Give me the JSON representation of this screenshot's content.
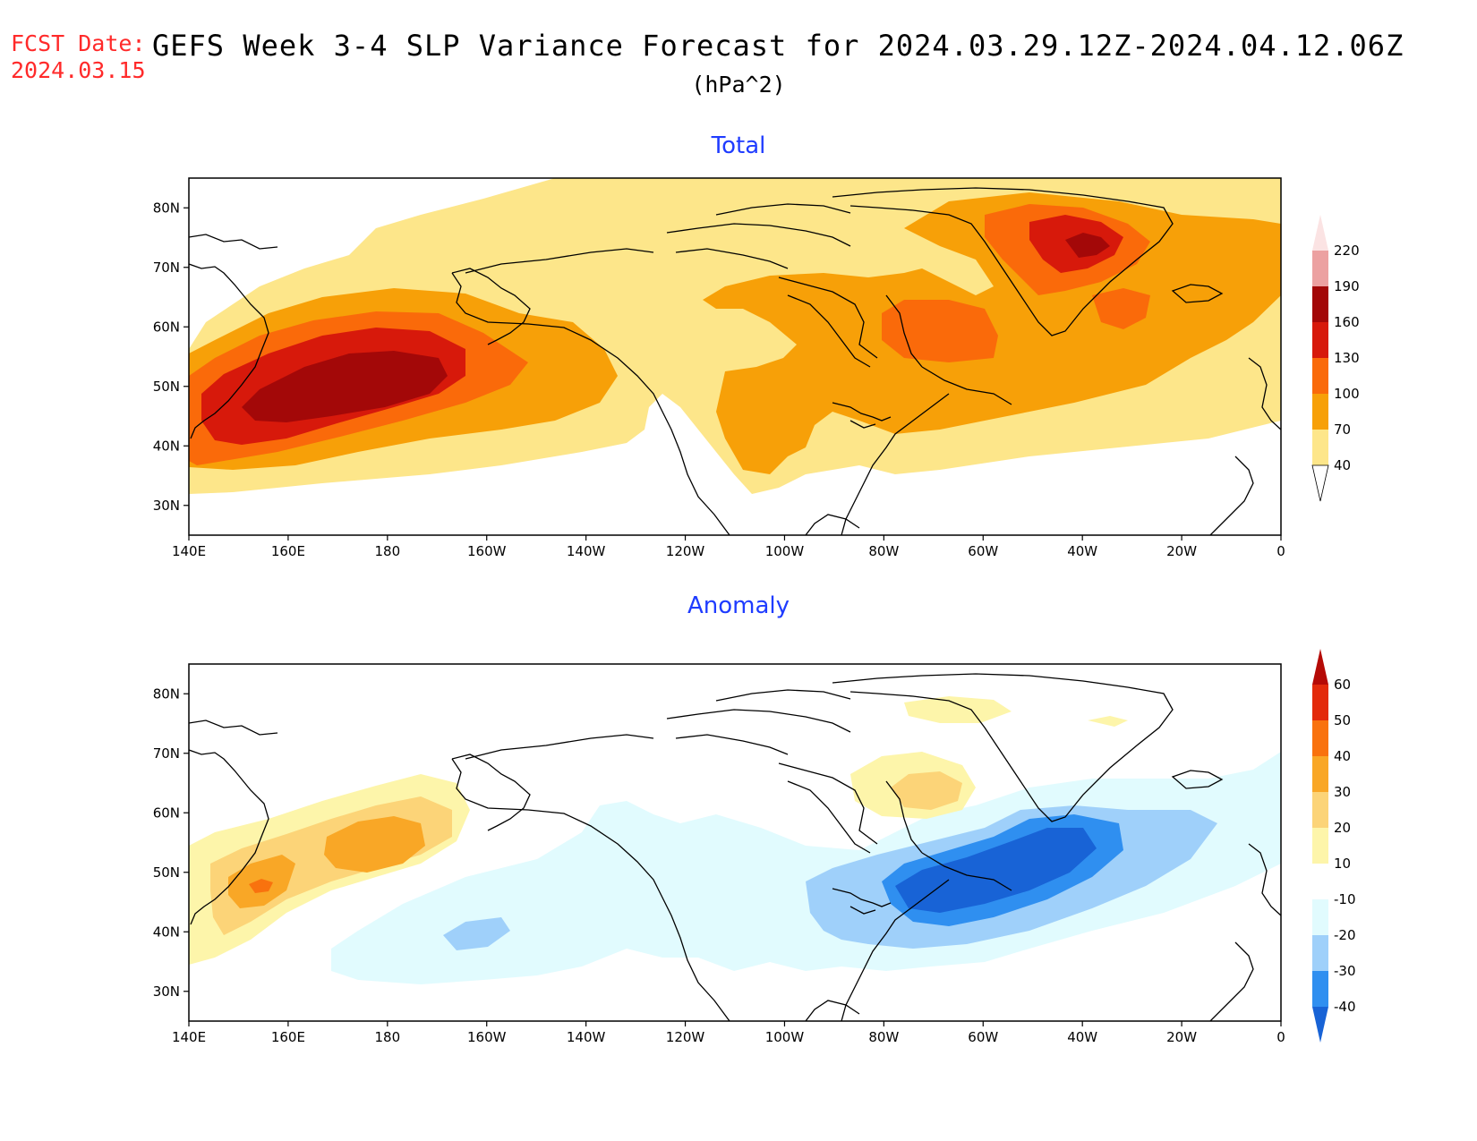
{
  "header": {
    "fcst_label": "FCST Date:",
    "fcst_date": "2024.03.15",
    "title": "GEFS Week 3-4 SLP Variance Forecast for 2024.03.29.12Z-2024.04.12.06Z",
    "units": "(hPa^2)"
  },
  "map": {
    "lon_labels": [
      "140E",
      "160E",
      "180",
      "160W",
      "140W",
      "120W",
      "100W",
      "80W",
      "60W",
      "40W",
      "20W",
      "0"
    ],
    "lat_labels": [
      "80N",
      "70N",
      "60N",
      "50N",
      "40N",
      "30N"
    ]
  },
  "panels": [
    {
      "title": "Total",
      "colorbar": {
        "levels": [
          "40",
          "70",
          "100",
          "130",
          "160",
          "190",
          "220"
        ],
        "colors": [
          "#fde68a",
          "#f7a008",
          "#fa6a0a",
          "#d7190b",
          "#a30808",
          "#eca1a1",
          "#fbe3e3"
        ]
      }
    },
    {
      "title": "Anomaly",
      "colorbar": {
        "levels": [
          "-40",
          "-30",
          "-20",
          "-10",
          "10",
          "20",
          "30",
          "40",
          "50",
          "60"
        ],
        "colors": [
          "#1863d6",
          "#2f8ff0",
          "#9fd0fa",
          "#e1fbfe",
          "#ffffff",
          "#fdf5aa",
          "#fcd478",
          "#f9a726",
          "#f9720e",
          "#e32a0b",
          "#b50a06"
        ]
      }
    }
  ]
}
